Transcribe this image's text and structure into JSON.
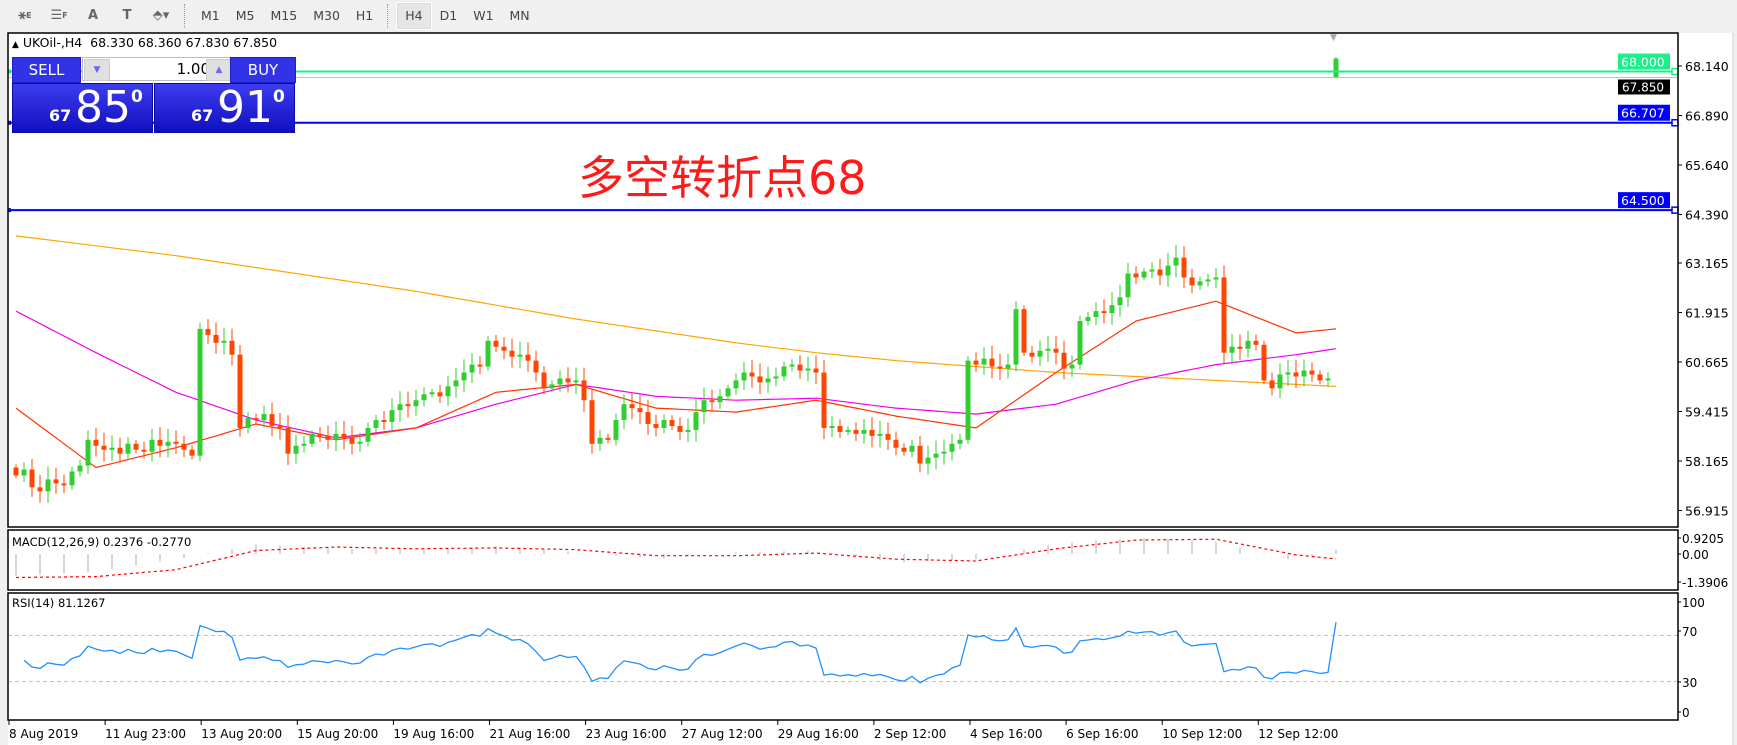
{
  "toolbar": {
    "tools": [
      {
        "name": "elliott-tool-icon",
        "glyph": "⚹",
        "sub": "E"
      },
      {
        "name": "fibonacci-tool-icon",
        "glyph": "☰",
        "sub": "F"
      },
      {
        "name": "text-tool-icon",
        "glyph": "A",
        "sub": ""
      },
      {
        "name": "text-label-tool-icon",
        "glyph": "T",
        "sub": ""
      },
      {
        "name": "arrows-tool-icon",
        "glyph": "⬘▾",
        "sub": ""
      }
    ],
    "periods": [
      "M1",
      "M5",
      "M15",
      "M30",
      "H1",
      "H4",
      "D1",
      "W1",
      "MN"
    ],
    "active_period": "H4"
  },
  "chart_header": {
    "symbol": "UKOil-,H4",
    "ohlc": "68.330 68.360 67.830 67.850"
  },
  "trade_panel": {
    "sell_label": "SELL",
    "buy_label": "BUY",
    "lot": "1.00",
    "sell_price": {
      "prefix": "67",
      "main": "85",
      "sup": "0"
    },
    "buy_price": {
      "prefix": "67",
      "main": "91",
      "sup": "0"
    }
  },
  "annotation": "多空转折点68",
  "colors": {
    "bull": "#32cd32",
    "bear": "#ff4500",
    "ma_fast": "#ff3300",
    "ma_mid": "#ee00ee",
    "ma_slow": "#ffa500",
    "line_68": "#19f08a",
    "line_blue": "#0000ff",
    "rsi": "#1e90ff",
    "macd_hist": "#c0c0c0",
    "macd_signal": "#ff0000"
  },
  "chart_data": {
    "type": "candlestick",
    "price_axis_labels": [
      "68.140",
      "66.890",
      "65.640",
      "64.390",
      "63.165",
      "61.915",
      "60.665",
      "59.415",
      "58.165",
      "56.915"
    ],
    "time_axis_labels": [
      "8 Aug 2019",
      "11 Aug 23:00",
      "13 Aug 20:00",
      "15 Aug 20:00",
      "19 Aug 16:00",
      "21 Aug 16:00",
      "23 Aug 16:00",
      "27 Aug 12:00",
      "29 Aug 16:00",
      "2 Sep 12:00",
      "4 Sep 16:00",
      "6 Sep 16:00",
      "10 Sep 12:00",
      "12 Sep 12:00"
    ],
    "last_bar": {
      "open": 68.33,
      "high": 68.36,
      "low": 67.83,
      "close": 67.85
    },
    "closes": [
      57.8,
      57.95,
      57.5,
      57.4,
      57.7,
      57.6,
      57.55,
      57.9,
      58.05,
      58.7,
      58.55,
      58.45,
      58.5,
      58.35,
      58.6,
      58.45,
      58.4,
      58.7,
      58.55,
      58.65,
      58.6,
      58.45,
      58.3,
      61.5,
      61.35,
      61.15,
      61.2,
      60.85,
      59.0,
      59.25,
      59.2,
      59.35,
      59.05,
      59.0,
      58.35,
      58.55,
      58.6,
      58.85,
      58.8,
      58.7,
      58.85,
      58.75,
      58.6,
      58.65,
      59.0,
      59.2,
      59.15,
      59.45,
      59.6,
      59.55,
      59.7,
      59.85,
      59.9,
      59.8,
      60.05,
      60.2,
      60.4,
      60.6,
      60.55,
      61.2,
      61.05,
      60.95,
      60.8,
      60.85,
      60.7,
      60.4,
      60.0,
      60.1,
      60.25,
      60.15,
      60.2,
      59.7,
      58.6,
      58.75,
      58.7,
      59.2,
      59.6,
      59.5,
      59.4,
      59.1,
      59.0,
      59.2,
      59.05,
      58.9,
      58.95,
      59.4,
      59.7,
      59.65,
      59.8,
      60.0,
      60.2,
      60.4,
      60.3,
      60.15,
      60.25,
      60.3,
      60.55,
      60.6,
      60.45,
      60.5,
      60.4,
      59.0,
      59.05,
      58.9,
      58.95,
      58.85,
      58.95,
      58.8,
      58.85,
      58.7,
      58.5,
      58.4,
      58.55,
      58.1,
      58.25,
      58.35,
      58.4,
      58.6,
      58.7,
      60.7,
      60.6,
      60.75,
      60.55,
      60.5,
      60.6,
      62.0,
      60.9,
      60.8,
      60.95,
      61.0,
      60.9,
      60.5,
      60.6,
      61.7,
      61.8,
      61.95,
      61.9,
      62.1,
      62.3,
      62.9,
      62.8,
      62.95,
      63.0,
      62.85,
      63.1,
      63.3,
      62.8,
      62.6,
      62.7,
      62.75,
      62.8,
      60.9,
      61.05,
      61.0,
      61.2,
      61.1,
      60.2,
      60.0,
      60.35,
      60.4,
      60.3,
      60.45,
      60.35,
      60.2,
      60.25,
      67.85
    ],
    "moving_averages": {
      "bar_index": [
        0,
        10,
        20,
        30,
        40,
        50,
        60,
        70,
        80,
        90,
        100,
        110,
        120,
        130,
        140,
        150,
        160,
        165
      ],
      "fast": [
        59.5,
        58.0,
        58.5,
        59.1,
        58.7,
        59.0,
        59.9,
        60.1,
        59.5,
        59.4,
        59.7,
        59.3,
        59.0,
        60.4,
        61.7,
        62.2,
        61.4,
        61.5
      ],
      "mid": [
        61.95,
        60.9,
        59.9,
        59.2,
        58.75,
        59.0,
        59.6,
        60.1,
        59.8,
        59.7,
        59.75,
        59.5,
        59.35,
        59.6,
        60.2,
        60.6,
        60.85,
        61.0
      ],
      "slow": [
        63.85,
        63.6,
        63.35,
        63.05,
        62.75,
        62.45,
        62.1,
        61.75,
        61.45,
        61.15,
        60.9,
        60.7,
        60.55,
        60.4,
        60.3,
        60.2,
        60.1,
        60.05
      ]
    },
    "horizontal_lines": [
      {
        "price": "68.000",
        "value": 68.0,
        "color": "#19f08a"
      },
      {
        "price": "66.707",
        "value": 66.707,
        "color": "#0000ff"
      },
      {
        "price": "64.500",
        "value": 64.5,
        "color": "#0000ff"
      }
    ],
    "bid_label": "67.850",
    "macd": {
      "label": "MACD(12,26,9) 0.2376 -0.2770",
      "axis_labels": [
        "0.9205",
        "0.00",
        "-1.3906"
      ],
      "bar_index": [
        0,
        10,
        20,
        30,
        40,
        50,
        60,
        70,
        80,
        90,
        100,
        110,
        120,
        130,
        140,
        150,
        160,
        165
      ],
      "main": [
        -1.25,
        -1.0,
        -0.3,
        0.55,
        0.3,
        0.25,
        0.45,
        0.1,
        -0.3,
        0.1,
        0.2,
        -0.5,
        -0.3,
        0.6,
        0.95,
        0.7,
        -0.4,
        0.24
      ],
      "signal": [
        -1.35,
        -1.3,
        -0.9,
        0.2,
        0.4,
        0.3,
        0.35,
        0.25,
        -0.1,
        -0.1,
        0.05,
        -0.3,
        -0.4,
        0.3,
        0.8,
        0.85,
        -0.05,
        -0.28
      ]
    },
    "rsi": {
      "label": "RSI(14) 81.1267",
      "axis_labels": [
        "100",
        "70",
        "30",
        "0"
      ],
      "levels": [
        70,
        30
      ],
      "period": 14
    }
  }
}
